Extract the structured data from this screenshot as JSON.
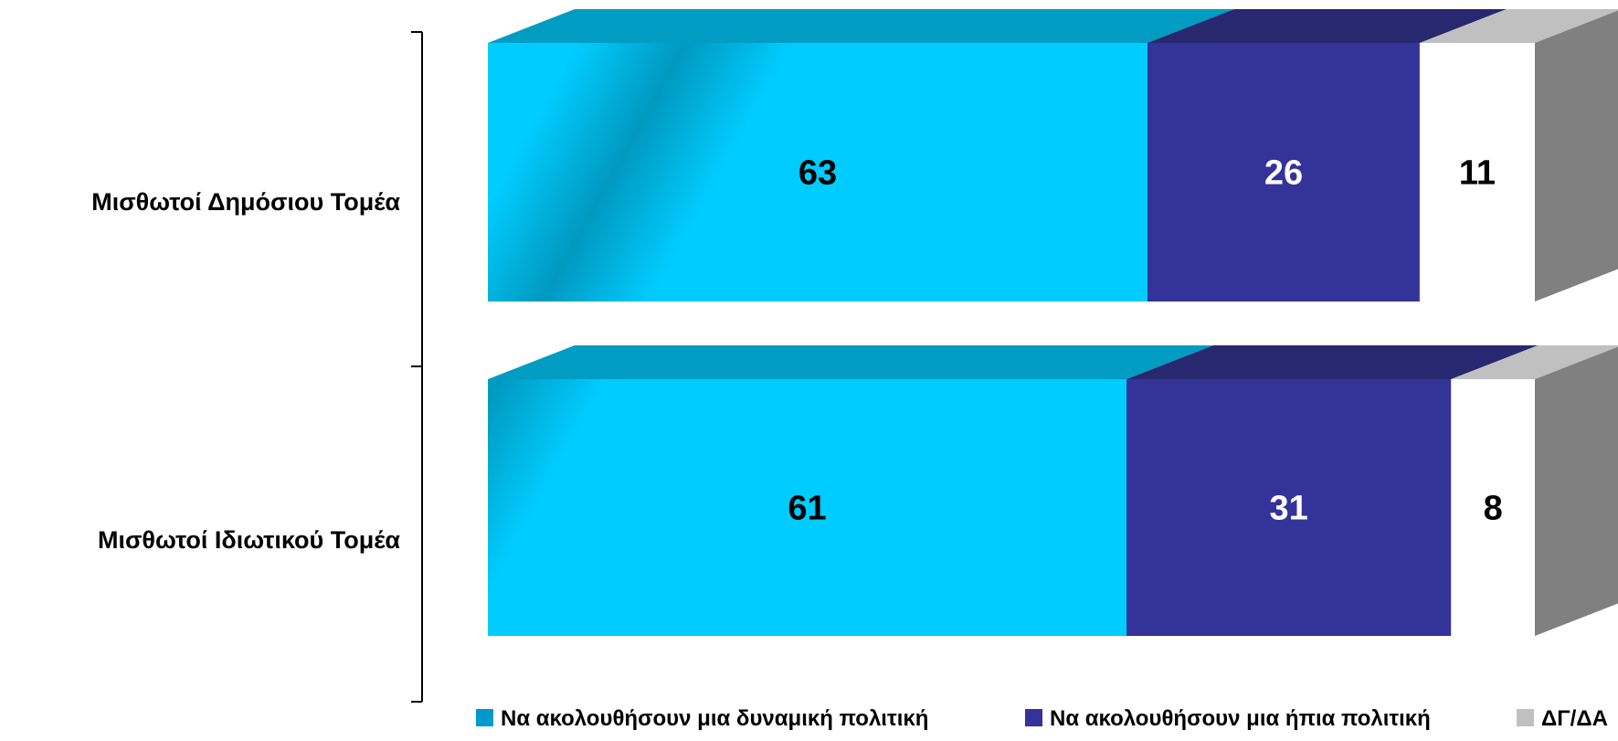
{
  "chart_data": {
    "type": "bar",
    "orientation": "horizontal",
    "stacked": true,
    "style": "3d",
    "categories": [
      "Μισθωτοί Δημόσιου Τομέα",
      "Μισθωτοί Ιδιωτικού Τομέα"
    ],
    "series": [
      {
        "name": "Να ακολουθήσουν μια δυναμική πολιτική",
        "values": [
          63,
          61
        ],
        "color": "#00CCFF",
        "top_color": "#009CC2",
        "label_color": "#000000"
      },
      {
        "name": "Να ακολουθήσουν μια ήπια πολιτική",
        "values": [
          26,
          31
        ],
        "color": "#333399",
        "top_color": "#282870",
        "label_color": "#FFFFFF"
      },
      {
        "name": "ΔΓ/ΔΑ",
        "values": [
          11,
          8
        ],
        "color": "#FFFFFF",
        "top_color": "#C0C0C0",
        "label_color": "#000000"
      }
    ],
    "xlim": [
      0,
      100
    ],
    "legend_position": "bottom",
    "side_color": "#808080",
    "grid": false
  }
}
